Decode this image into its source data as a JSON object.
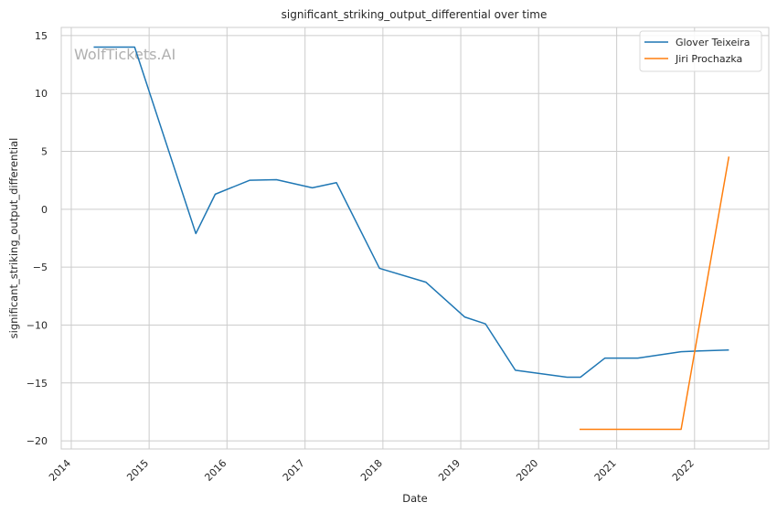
{
  "chart_data": {
    "type": "line",
    "title": "significant_striking_output_differential over time",
    "xlabel": "Date",
    "ylabel": "significant_striking_output_differential",
    "watermark": "WolfTickets.AI",
    "xlim": [
      "2013-11-15",
      "2022-12-15"
    ],
    "ylim": [
      -20.7,
      15.7
    ],
    "x_ticks": [
      "2014",
      "2015",
      "2016",
      "2017",
      "2018",
      "2019",
      "2020",
      "2021",
      "2022"
    ],
    "y_ticks": [
      15,
      10,
      5,
      0,
      -5,
      -10,
      -15,
      -20
    ],
    "grid": true,
    "legend_position": "top-right",
    "series": [
      {
        "name": "Glover Teixeira",
        "color": "#1f77b4",
        "points": [
          {
            "x": "2014-04-16",
            "y": 14.0
          },
          {
            "x": "2014-10-25",
            "y": 14.0
          },
          {
            "x": "2015-08-08",
            "y": -2.1
          },
          {
            "x": "2015-11-07",
            "y": 1.3
          },
          {
            "x": "2016-04-16",
            "y": 2.5
          },
          {
            "x": "2016-08-20",
            "y": 2.55
          },
          {
            "x": "2017-02-04",
            "y": 1.85
          },
          {
            "x": "2017-05-28",
            "y": 2.3
          },
          {
            "x": "2017-12-16",
            "y": -5.1
          },
          {
            "x": "2018-07-22",
            "y": -6.3
          },
          {
            "x": "2019-01-19",
            "y": -9.3
          },
          {
            "x": "2019-04-27",
            "y": -9.9
          },
          {
            "x": "2019-09-14",
            "y": -13.9
          },
          {
            "x": "2020-05-13",
            "y": -14.5
          },
          {
            "x": "2020-07-15",
            "y": -14.5
          },
          {
            "x": "2020-11-07",
            "y": -12.85
          },
          {
            "x": "2021-04-10",
            "y": -12.85
          },
          {
            "x": "2021-10-30",
            "y": -12.3
          },
          {
            "x": "2022-01-01",
            "y": -12.25
          },
          {
            "x": "2022-06-11",
            "y": -12.15
          }
        ]
      },
      {
        "name": "Jiri Prochazka",
        "color": "#ff7f0e",
        "points": [
          {
            "x": "2020-07-11",
            "y": -19.0
          },
          {
            "x": "2021-04-10",
            "y": -19.0
          },
          {
            "x": "2021-10-30",
            "y": -19.0
          },
          {
            "x": "2022-06-11",
            "y": 4.55
          }
        ]
      }
    ]
  }
}
